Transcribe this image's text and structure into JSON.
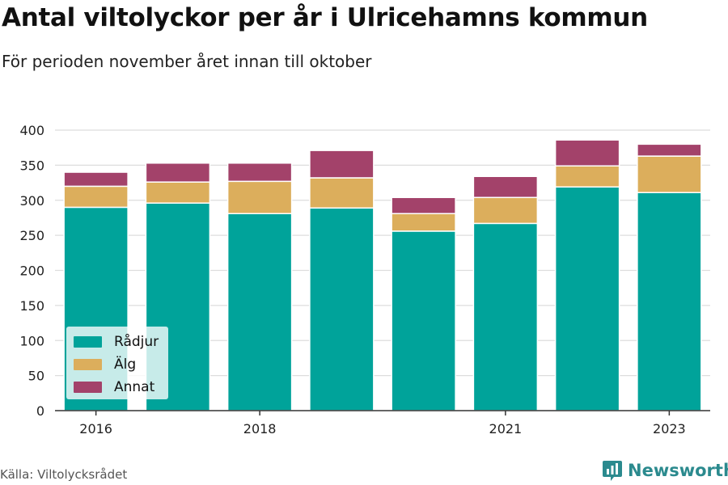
{
  "header": {
    "title": "Antal viltolyckor per år i Ulricehamns kommun",
    "subtitle": "För perioden november året innan till oktober"
  },
  "footer": {
    "source": "Källa: Viltolycksrådet",
    "brand": "Newsworthy"
  },
  "colors": {
    "radjur": "#00a39a",
    "alg": "#dcae5c",
    "annat": "#a3426a",
    "brand": "#2b8a8e"
  },
  "chart_data": {
    "type": "bar",
    "stacked": true,
    "categories": [
      "2016",
      "2017",
      "2018",
      "2019",
      "2020",
      "2021",
      "2022",
      "2023"
    ],
    "x_tick_labels": [
      "2016",
      "2018",
      "2021",
      "2023"
    ],
    "y_ticks": [
      "0",
      "50",
      "100",
      "150",
      "200",
      "250",
      "300",
      "350",
      "400"
    ],
    "ylim": [
      0,
      400
    ],
    "grid": true,
    "legend_placement": "bottom-left",
    "series": [
      {
        "name": "Rådjur",
        "color": "#00a39a",
        "values": [
          290,
          296,
          281,
          289,
          256,
          267,
          319,
          311
        ]
      },
      {
        "name": "Älg",
        "color": "#dcae5c",
        "values": [
          30,
          30,
          46,
          43,
          25,
          37,
          30,
          52
        ]
      },
      {
        "name": "Annat",
        "color": "#a3426a",
        "values": [
          20,
          27,
          26,
          39,
          23,
          30,
          37,
          17
        ]
      }
    ]
  }
}
